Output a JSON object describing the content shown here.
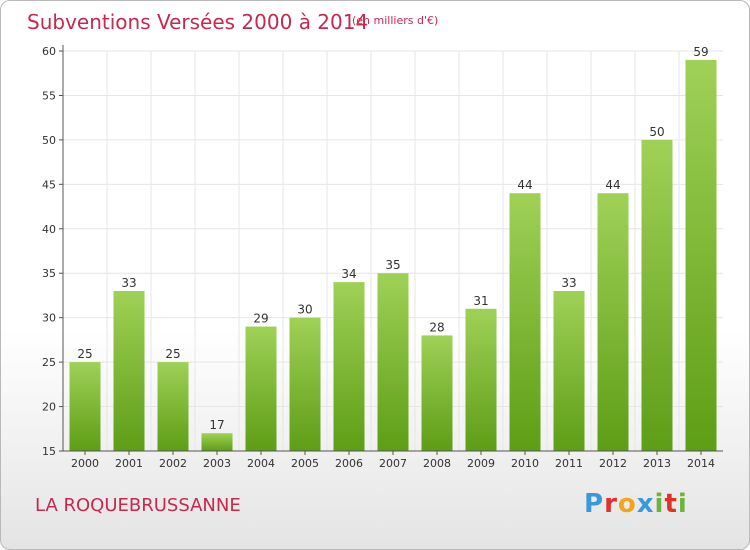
{
  "header": {
    "title": "Subventions Versées 2000 à 2014",
    "subtitle": "(en milliers d'€)"
  },
  "footer": {
    "commune": "LA ROQUEBRUSSANNE",
    "brand": "Proxiti"
  },
  "colors": {
    "title": "#c8284e",
    "bar_light": "#9fd157",
    "bar_dark": "#5e9d16",
    "grid": "#e6e6e6"
  },
  "chart_data": {
    "type": "bar",
    "title": "Subventions Versées 2000 à 2014",
    "subtitle": "(en milliers d'€)",
    "categories": [
      "2000",
      "2001",
      "2002",
      "2003",
      "2004",
      "2005",
      "2006",
      "2007",
      "2008",
      "2009",
      "2010",
      "2011",
      "2012",
      "2013",
      "2014"
    ],
    "values": [
      25,
      33,
      25,
      17,
      29,
      30,
      34,
      35,
      28,
      31,
      44,
      33,
      44,
      50,
      59
    ],
    "ylim": [
      15,
      60
    ],
    "yticks": [
      15,
      20,
      25,
      30,
      35,
      40,
      45,
      50,
      55,
      60
    ],
    "grid": true,
    "data_labels": true
  }
}
